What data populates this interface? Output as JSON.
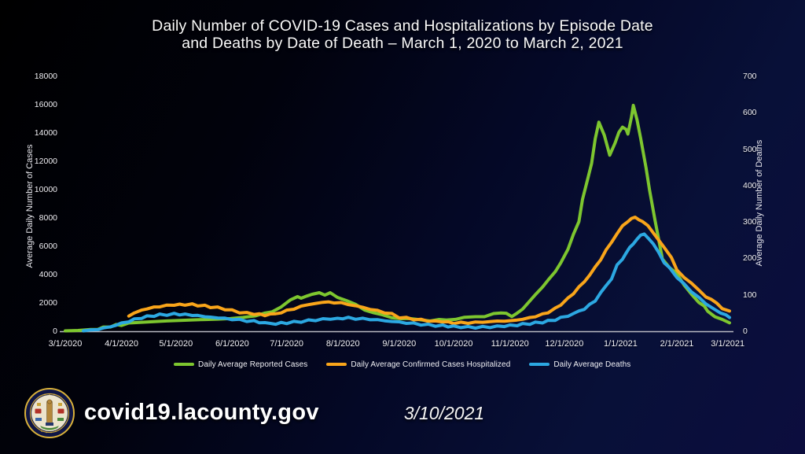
{
  "title": {
    "line1": "Daily Number of COVID-19 Cases and Hospitalizations by Episode Date",
    "line2": "and Deaths by Date of Death – March 1, 2020 to March 2, 2021"
  },
  "footer": {
    "url": "covid19.lacounty.gov",
    "date": "3/10/2021",
    "logo_name": "la-county-seal"
  },
  "colors": {
    "cases": "#7DC62F",
    "hospitalized": "#F9A51A",
    "deaths": "#2CA8E2",
    "axis_line": "#b9bac2",
    "text": "#f2f2f2"
  },
  "chart_data": {
    "type": "line",
    "title": "Daily Number of COVID-19 Cases and Hospitalizations by Episode Date and Deaths by Date of Death – March 1, 2020 to March 2, 2021",
    "grid": false,
    "legend_position": "bottom",
    "x_axis": {
      "tick_labels": [
        "3/1/2020",
        "4/1/2020",
        "5/1/2020",
        "6/1/2020",
        "7/1/2020",
        "8/1/2020",
        "9/1/2020",
        "10/1/2020",
        "11/1/2020",
        "12/1/2020",
        "1/1/2021",
        "2/1/2021",
        "3/1/2021"
      ],
      "tick_day_offsets": [
        0,
        31,
        61,
        92,
        122,
        153,
        184,
        214,
        245,
        275,
        306,
        337,
        365
      ],
      "domain_days": [
        0,
        366
      ]
    },
    "left_axis": {
      "label": "Average Daily Number of Cases",
      "ticks": [
        0,
        2000,
        4000,
        6000,
        8000,
        10000,
        12000,
        14000,
        16000,
        18000
      ],
      "range": [
        0,
        18000
      ]
    },
    "right_axis": {
      "label": "Average Daily Number of Deaths",
      "ticks": [
        0,
        100,
        200,
        300,
        400,
        500,
        600,
        700
      ],
      "range": [
        0,
        700
      ]
    },
    "series": [
      {
        "name": "Daily Average Reported Cases",
        "axis": "left",
        "color": "#7DC62F",
        "points": [
          [
            0,
            10
          ],
          [
            7,
            35
          ],
          [
            14,
            90
          ],
          [
            18,
            160
          ],
          [
            21,
            250
          ],
          [
            25,
            340
          ],
          [
            28,
            420
          ],
          [
            31,
            470
          ],
          [
            35,
            520
          ],
          [
            42,
            580
          ],
          [
            49,
            640
          ],
          [
            56,
            700
          ],
          [
            63,
            760
          ],
          [
            70,
            810
          ],
          [
            77,
            860
          ],
          [
            84,
            900
          ],
          [
            91,
            950
          ],
          [
            98,
            1040
          ],
          [
            105,
            1150
          ],
          [
            110,
            1250
          ],
          [
            114,
            1400
          ],
          [
            119,
            1750
          ],
          [
            124,
            2150
          ],
          [
            128,
            2500
          ],
          [
            130,
            2300
          ],
          [
            133,
            2480
          ],
          [
            136,
            2650
          ],
          [
            140,
            2700
          ],
          [
            143,
            2600
          ],
          [
            146,
            2660
          ],
          [
            150,
            2450
          ],
          [
            155,
            2150
          ],
          [
            160,
            1850
          ],
          [
            165,
            1550
          ],
          [
            170,
            1300
          ],
          [
            175,
            1100
          ],
          [
            180,
            1000
          ],
          [
            185,
            900
          ],
          [
            190,
            840
          ],
          [
            196,
            800
          ],
          [
            201,
            780
          ],
          [
            206,
            790
          ],
          [
            210,
            820
          ],
          [
            215,
            870
          ],
          [
            220,
            930
          ],
          [
            226,
            1000
          ],
          [
            231,
            1090
          ],
          [
            236,
            1220
          ],
          [
            240,
            1300
          ],
          [
            243,
            1230
          ],
          [
            246,
            1100
          ],
          [
            249,
            1230
          ],
          [
            252,
            1600
          ],
          [
            256,
            2100
          ],
          [
            259,
            2600
          ],
          [
            263,
            3100
          ],
          [
            266,
            3600
          ],
          [
            270,
            4200
          ],
          [
            273,
            4800
          ],
          [
            277,
            5800
          ],
          [
            280,
            6800
          ],
          [
            283,
            7800
          ],
          [
            285,
            9300
          ],
          [
            288,
            10800
          ],
          [
            290,
            11900
          ],
          [
            292,
            13600
          ],
          [
            294,
            14700
          ],
          [
            297,
            13900
          ],
          [
            300,
            12400
          ],
          [
            303,
            13300
          ],
          [
            305,
            14100
          ],
          [
            307,
            14400
          ],
          [
            309,
            14200
          ],
          [
            310,
            13900
          ],
          [
            312,
            15200
          ],
          [
            313,
            16000
          ],
          [
            315,
            14900
          ],
          [
            317,
            13600
          ],
          [
            320,
            11600
          ],
          [
            322,
            9900
          ],
          [
            325,
            7800
          ],
          [
            329,
            5100
          ],
          [
            333,
            4500
          ],
          [
            337,
            4050
          ],
          [
            341,
            3300
          ],
          [
            345,
            2570
          ],
          [
            349,
            2100
          ],
          [
            352,
            1750
          ],
          [
            354,
            1370
          ],
          [
            358,
            1050
          ],
          [
            362,
            820
          ],
          [
            366,
            590
          ]
        ]
      },
      {
        "name": "Daily Average Confirmed Cases Hospitalized",
        "axis": "left",
        "color": "#F9A51A",
        "points": [
          [
            35,
            1100
          ],
          [
            38,
            1300
          ],
          [
            42,
            1500
          ],
          [
            45,
            1600
          ],
          [
            49,
            1700
          ],
          [
            52,
            1760
          ],
          [
            56,
            1820
          ],
          [
            60,
            1850
          ],
          [
            63,
            1870
          ],
          [
            66,
            1900
          ],
          [
            70,
            1880
          ],
          [
            73,
            1840
          ],
          [
            77,
            1780
          ],
          [
            80,
            1720
          ],
          [
            84,
            1660
          ],
          [
            88,
            1580
          ],
          [
            92,
            1450
          ],
          [
            96,
            1350
          ],
          [
            100,
            1280
          ],
          [
            104,
            1220
          ],
          [
            107,
            1180
          ],
          [
            110,
            1160
          ],
          [
            113,
            1180
          ],
          [
            116,
            1250
          ],
          [
            119,
            1320
          ],
          [
            122,
            1440
          ],
          [
            126,
            1600
          ],
          [
            130,
            1750
          ],
          [
            134,
            1890
          ],
          [
            138,
            1970
          ],
          [
            142,
            2030
          ],
          [
            145,
            2060
          ],
          [
            148,
            2040
          ],
          [
            152,
            1990
          ],
          [
            156,
            1900
          ],
          [
            160,
            1790
          ],
          [
            164,
            1680
          ],
          [
            168,
            1560
          ],
          [
            172,
            1440
          ],
          [
            176,
            1330
          ],
          [
            180,
            1200
          ],
          [
            184,
            1000
          ],
          [
            188,
            920
          ],
          [
            192,
            860
          ],
          [
            196,
            800
          ],
          [
            200,
            740
          ],
          [
            204,
            700
          ],
          [
            208,
            660
          ],
          [
            211,
            630
          ],
          [
            214,
            600
          ],
          [
            218,
            590
          ],
          [
            222,
            600
          ],
          [
            226,
            620
          ],
          [
            230,
            650
          ],
          [
            234,
            680
          ],
          [
            238,
            710
          ],
          [
            242,
            730
          ],
          [
            245,
            750
          ],
          [
            249,
            800
          ],
          [
            252,
            870
          ],
          [
            256,
            960
          ],
          [
            259,
            1060
          ],
          [
            263,
            1200
          ],
          [
            266,
            1350
          ],
          [
            270,
            1600
          ],
          [
            273,
            1900
          ],
          [
            277,
            2300
          ],
          [
            280,
            2700
          ],
          [
            283,
            3100
          ],
          [
            286,
            3500
          ],
          [
            289,
            4000
          ],
          [
            292,
            4500
          ],
          [
            295,
            5100
          ],
          [
            298,
            5700
          ],
          [
            301,
            6300
          ],
          [
            304,
            6900
          ],
          [
            307,
            7400
          ],
          [
            310,
            7800
          ],
          [
            312,
            7950
          ],
          [
            314,
            8000
          ],
          [
            316,
            7900
          ],
          [
            318,
            7800
          ],
          [
            321,
            7400
          ],
          [
            324,
            7000
          ],
          [
            327,
            6400
          ],
          [
            330,
            5900
          ],
          [
            334,
            5200
          ],
          [
            337,
            4300
          ],
          [
            341,
            3800
          ],
          [
            345,
            3400
          ],
          [
            349,
            2900
          ],
          [
            353,
            2450
          ],
          [
            356,
            2250
          ],
          [
            359,
            1950
          ],
          [
            362,
            1650
          ],
          [
            366,
            1380
          ]
        ]
      },
      {
        "name": "Daily Average Deaths",
        "axis": "right",
        "color": "#2CA8E2",
        "points": [
          [
            10,
            1
          ],
          [
            14,
            3
          ],
          [
            18,
            6
          ],
          [
            21,
            9
          ],
          [
            25,
            13
          ],
          [
            28,
            17
          ],
          [
            31,
            21
          ],
          [
            35,
            27
          ],
          [
            38,
            32
          ],
          [
            42,
            37
          ],
          [
            45,
            40
          ],
          [
            49,
            43
          ],
          [
            52,
            45
          ],
          [
            56,
            46
          ],
          [
            60,
            47
          ],
          [
            63,
            47
          ],
          [
            66,
            46
          ],
          [
            70,
            45
          ],
          [
            73,
            43
          ],
          [
            77,
            41
          ],
          [
            80,
            39
          ],
          [
            84,
            37
          ],
          [
            88,
            35
          ],
          [
            92,
            33
          ],
          [
            96,
            31
          ],
          [
            100,
            29
          ],
          [
            104,
            27
          ],
          [
            107,
            25
          ],
          [
            110,
            23
          ],
          [
            113,
            21
          ],
          [
            116,
            21
          ],
          [
            119,
            22
          ],
          [
            122,
            23
          ],
          [
            126,
            25
          ],
          [
            130,
            27
          ],
          [
            134,
            29
          ],
          [
            138,
            31
          ],
          [
            142,
            33
          ],
          [
            146,
            34
          ],
          [
            150,
            35
          ],
          [
            153,
            36
          ],
          [
            156,
            36
          ],
          [
            160,
            35
          ],
          [
            164,
            34
          ],
          [
            168,
            33
          ],
          [
            172,
            31
          ],
          [
            176,
            29
          ],
          [
            180,
            27
          ],
          [
            184,
            25
          ],
          [
            188,
            23
          ],
          [
            192,
            21
          ],
          [
            196,
            19
          ],
          [
            200,
            17
          ],
          [
            204,
            16
          ],
          [
            208,
            15
          ],
          [
            211,
            14
          ],
          [
            214,
            13
          ],
          [
            218,
            12
          ],
          [
            222,
            11
          ],
          [
            226,
            11
          ],
          [
            230,
            11
          ],
          [
            234,
            12
          ],
          [
            238,
            13
          ],
          [
            242,
            14
          ],
          [
            245,
            15
          ],
          [
            249,
            17
          ],
          [
            252,
            19
          ],
          [
            256,
            21
          ],
          [
            259,
            23
          ],
          [
            263,
            25
          ],
          [
            266,
            28
          ],
          [
            270,
            32
          ],
          [
            273,
            37
          ],
          [
            277,
            43
          ],
          [
            280,
            48
          ],
          [
            283,
            55
          ],
          [
            286,
            62
          ],
          [
            289,
            72
          ],
          [
            292,
            85
          ],
          [
            295,
            105
          ],
          [
            298,
            125
          ],
          [
            301,
            145
          ],
          [
            304,
            180
          ],
          [
            307,
            200
          ],
          [
            309,
            215
          ],
          [
            311,
            228
          ],
          [
            313,
            240
          ],
          [
            315,
            255
          ],
          [
            317,
            263
          ],
          [
            319,
            265
          ],
          [
            321,
            258
          ],
          [
            324,
            240
          ],
          [
            327,
            215
          ],
          [
            330,
            190
          ],
          [
            333,
            172
          ],
          [
            337,
            150
          ],
          [
            341,
            128
          ],
          [
            345,
            110
          ],
          [
            349,
            92
          ],
          [
            353,
            76
          ],
          [
            357,
            62
          ],
          [
            361,
            50
          ],
          [
            364,
            44
          ],
          [
            366,
            40
          ]
        ]
      }
    ]
  }
}
